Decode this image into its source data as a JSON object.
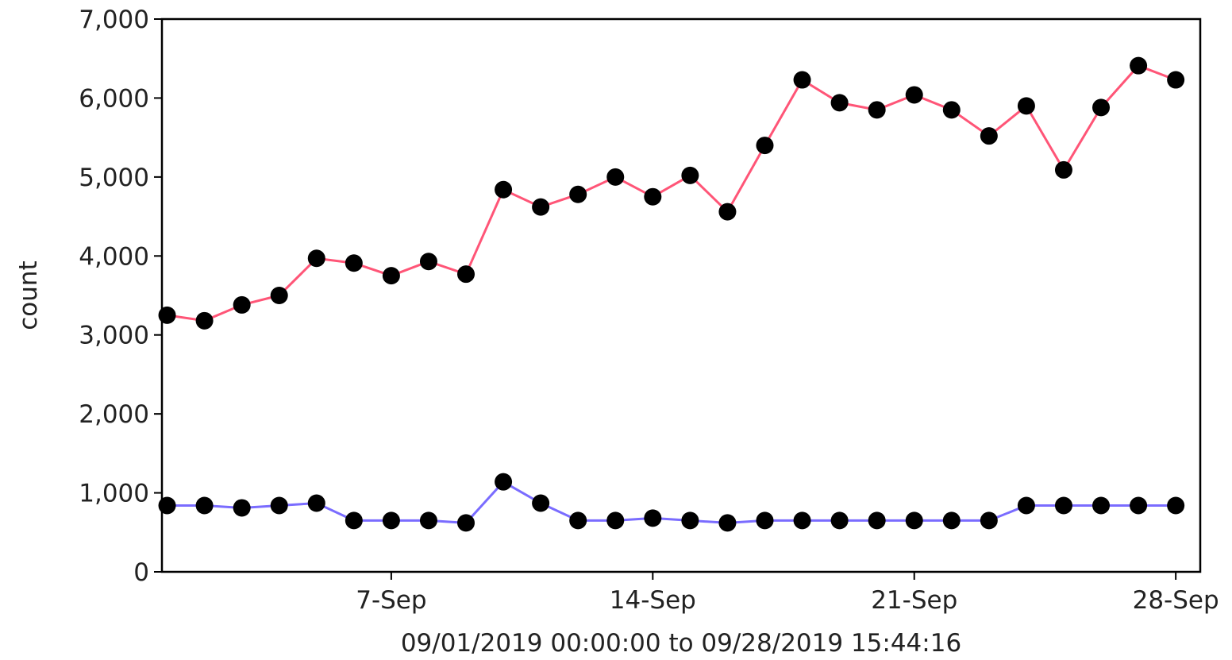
{
  "chart_data": {
    "type": "line",
    "title": "",
    "xlabel": "09/01/2019 00:00:00 to 09/28/2019 15:44:16",
    "ylabel": "count",
    "x": [
      "2019-09-01",
      "2019-09-02",
      "2019-09-03",
      "2019-09-04",
      "2019-09-05",
      "2019-09-06",
      "2019-09-07",
      "2019-09-08",
      "2019-09-09",
      "2019-09-10",
      "2019-09-11",
      "2019-09-12",
      "2019-09-13",
      "2019-09-14",
      "2019-09-15",
      "2019-09-16",
      "2019-09-17",
      "2019-09-18",
      "2019-09-19",
      "2019-09-20",
      "2019-09-21",
      "2019-09-22",
      "2019-09-23",
      "2019-09-24",
      "2019-09-25",
      "2019-09-26",
      "2019-09-27",
      "2019-09-28"
    ],
    "xlim": [
      "2019-08-31T20:40",
      "2019-09-28T15:44"
    ],
    "ylim": [
      0,
      7000
    ],
    "x_ticks": [
      {
        "date": "2019-09-07",
        "label": "7-Sep"
      },
      {
        "date": "2019-09-14",
        "label": "14-Sep"
      },
      {
        "date": "2019-09-21",
        "label": "21-Sep"
      },
      {
        "date": "2019-09-28",
        "label": "28-Sep"
      }
    ],
    "y_ticks": [
      {
        "value": 0,
        "label": "0"
      },
      {
        "value": 1000,
        "label": "1,000"
      },
      {
        "value": 2000,
        "label": "2,000"
      },
      {
        "value": 3000,
        "label": "3,000"
      },
      {
        "value": 4000,
        "label": "4,000"
      },
      {
        "value": 5000,
        "label": "5,000"
      },
      {
        "value": 6000,
        "label": "6,000"
      },
      {
        "value": 7000,
        "label": "7,000"
      }
    ],
    "grid": false,
    "legend": "none",
    "marker_color": "#000000",
    "series": [
      {
        "color": "#ff5577",
        "values": [
          3250,
          3180,
          3380,
          3500,
          3970,
          3910,
          3750,
          3930,
          3770,
          4840,
          4620,
          4780,
          5000,
          4750,
          5020,
          4560,
          5400,
          6230,
          5940,
          5850,
          6040,
          5850,
          5520,
          5900,
          5090,
          5880,
          6410,
          6230
        ]
      },
      {
        "color": "#7a6cff",
        "values": [
          840,
          840,
          810,
          840,
          870,
          650,
          650,
          650,
          620,
          1140,
          870,
          650,
          650,
          680,
          650,
          620,
          650,
          650,
          650,
          650,
          650,
          650,
          650,
          840,
          840,
          840,
          840,
          840
        ]
      }
    ]
  }
}
